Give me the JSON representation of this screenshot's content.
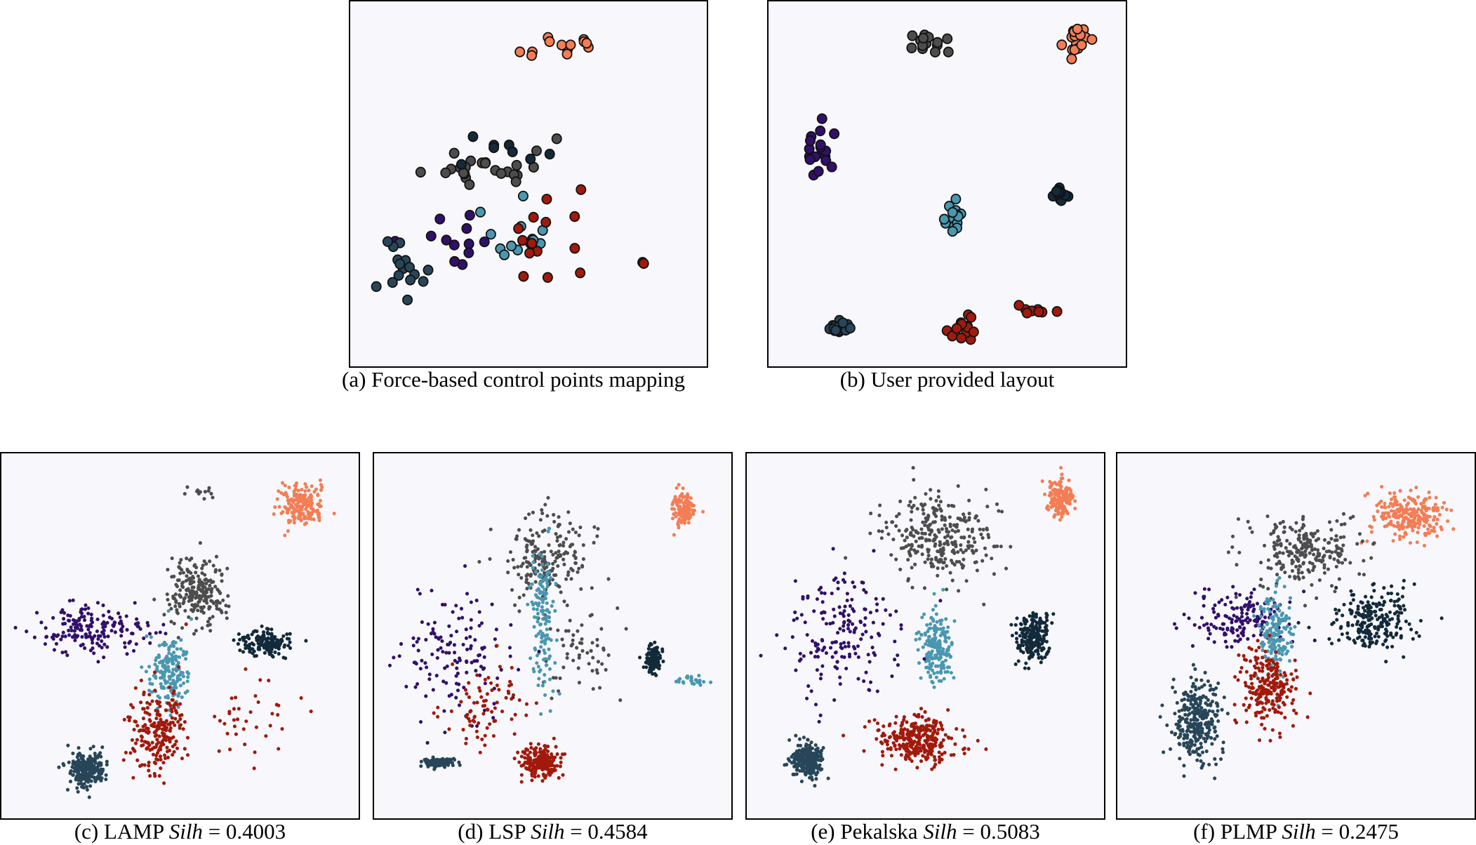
{
  "colors": {
    "bg": "#f8f8fc",
    "orange": "#f37d55",
    "gray": "#4d4d4d",
    "navy": "#132a3a",
    "teal": "#4a97b0",
    "purple": "#32106a",
    "red": "#a11a0c",
    "slate": "#284659"
  },
  "captions": {
    "a": "(a)  Force-based control points mapping",
    "b": "(b)  User provided layout",
    "c": {
      "prefix": "(c)  LAMP ",
      "metric": "Silh",
      "rest": " = 0.4003"
    },
    "d": {
      "prefix": "(d)  LSP ",
      "metric": "Silh",
      "rest": " = 0.4584"
    },
    "e": {
      "prefix": "(e)  Pekalska ",
      "metric": "Silh",
      "rest": " = 0.5083"
    },
    "f": {
      "prefix": "(f)  PLMP ",
      "metric": "Silh",
      "rest": " = 0.2475"
    }
  },
  "chart_data": [
    {
      "id": "a",
      "type": "scatter",
      "ylim": [
        0,
        1
      ],
      "xlim": [
        0,
        1
      ],
      "point_style": "large",
      "seed": 11,
      "clusters": [
        {
          "color": "orange",
          "cx": 0.58,
          "cy": 0.9,
          "sx": 0.13,
          "sy": 0.035,
          "n": 14
        },
        {
          "color": "gray",
          "cx": 0.39,
          "cy": 0.56,
          "sx": 0.14,
          "sy": 0.06,
          "n": 24
        },
        {
          "color": "navy",
          "cx": 0.42,
          "cy": 0.59,
          "sx": 0.1,
          "sy": 0.05,
          "n": 8
        },
        {
          "color": "teal",
          "cx": 0.47,
          "cy": 0.35,
          "sx": 0.11,
          "sy": 0.07,
          "n": 14
        },
        {
          "color": "purple",
          "cx": 0.28,
          "cy": 0.33,
          "sx": 0.12,
          "sy": 0.07,
          "n": 12
        },
        {
          "color": "red",
          "cx": 0.58,
          "cy": 0.34,
          "sx": 0.2,
          "sy": 0.12,
          "n": 16
        },
        {
          "color": "slate",
          "cx": 0.14,
          "cy": 0.24,
          "sx": 0.07,
          "sy": 0.1,
          "n": 16
        }
      ]
    },
    {
      "id": "b",
      "type": "scatter",
      "ylim": [
        0,
        1
      ],
      "xlim": [
        0,
        1
      ],
      "point_style": "large",
      "seed": 23,
      "clusters": [
        {
          "color": "gray",
          "cx": 0.46,
          "cy": 0.91,
          "sx": 0.05,
          "sy": 0.025,
          "n": 14
        },
        {
          "color": "orange",
          "cx": 0.89,
          "cy": 0.91,
          "sx": 0.03,
          "sy": 0.03,
          "n": 16
        },
        {
          "color": "purple",
          "cx": 0.12,
          "cy": 0.6,
          "sx": 0.04,
          "sy": 0.06,
          "n": 18
        },
        {
          "color": "teal",
          "cx": 0.51,
          "cy": 0.4,
          "sx": 0.025,
          "sy": 0.05,
          "n": 14
        },
        {
          "color": "navy",
          "cx": 0.83,
          "cy": 0.47,
          "sx": 0.02,
          "sy": 0.02,
          "n": 18
        },
        {
          "color": "slate",
          "cx": 0.18,
          "cy": 0.08,
          "sx": 0.03,
          "sy": 0.012,
          "n": 18
        },
        {
          "color": "red",
          "cx": 0.55,
          "cy": 0.08,
          "sx": 0.04,
          "sy": 0.025,
          "n": 16
        },
        {
          "color": "red",
          "cx": 0.74,
          "cy": 0.13,
          "sx": 0.06,
          "sy": 0.02,
          "n": 8
        }
      ]
    },
    {
      "id": "c",
      "type": "scatter",
      "ylim": [
        0,
        1
      ],
      "xlim": [
        0,
        1
      ],
      "point_style": "small",
      "seed": 31,
      "clusters": [
        {
          "color": "orange",
          "cx": 0.86,
          "cy": 0.88,
          "sx": 0.06,
          "sy": 0.05,
          "n": 180
        },
        {
          "color": "gray",
          "cx": 0.55,
          "cy": 0.63,
          "sx": 0.07,
          "sy": 0.08,
          "n": 220
        },
        {
          "color": "gray",
          "cx": 0.55,
          "cy": 0.92,
          "sx": 0.05,
          "sy": 0.015,
          "n": 12
        },
        {
          "color": "navy",
          "cx": 0.76,
          "cy": 0.48,
          "sx": 0.06,
          "sy": 0.03,
          "n": 160
        },
        {
          "color": "purple",
          "cx": 0.25,
          "cy": 0.52,
          "sx": 0.15,
          "sy": 0.06,
          "n": 180
        },
        {
          "color": "teal",
          "cx": 0.47,
          "cy": 0.4,
          "sx": 0.05,
          "sy": 0.08,
          "n": 170
        },
        {
          "color": "red",
          "cx": 0.43,
          "cy": 0.22,
          "sx": 0.07,
          "sy": 0.1,
          "n": 220
        },
        {
          "color": "red",
          "cx": 0.68,
          "cy": 0.25,
          "sx": 0.12,
          "sy": 0.12,
          "n": 40
        },
        {
          "color": "slate",
          "cx": 0.22,
          "cy": 0.11,
          "sx": 0.04,
          "sy": 0.04,
          "n": 260
        }
      ]
    },
    {
      "id": "d",
      "type": "scatter",
      "ylim": [
        0,
        1
      ],
      "xlim": [
        0,
        1
      ],
      "point_style": "small",
      "seed": 47,
      "clusters": [
        {
          "color": "orange",
          "cx": 0.89,
          "cy": 0.87,
          "sx": 0.03,
          "sy": 0.04,
          "n": 120
        },
        {
          "color": "gray",
          "cx": 0.48,
          "cy": 0.72,
          "sx": 0.1,
          "sy": 0.1,
          "n": 200
        },
        {
          "color": "gray",
          "cx": 0.58,
          "cy": 0.45,
          "sx": 0.1,
          "sy": 0.1,
          "n": 60
        },
        {
          "color": "navy",
          "cx": 0.8,
          "cy": 0.43,
          "sx": 0.02,
          "sy": 0.03,
          "n": 120
        },
        {
          "color": "teal",
          "cx": 0.47,
          "cy": 0.55,
          "sx": 0.03,
          "sy": 0.22,
          "n": 140
        },
        {
          "color": "teal",
          "cx": 0.91,
          "cy": 0.37,
          "sx": 0.05,
          "sy": 0.012,
          "n": 25
        },
        {
          "color": "purple",
          "cx": 0.22,
          "cy": 0.45,
          "sx": 0.12,
          "sy": 0.15,
          "n": 140
        },
        {
          "color": "red",
          "cx": 0.46,
          "cy": 0.13,
          "sx": 0.05,
          "sy": 0.04,
          "n": 200
        },
        {
          "color": "red",
          "cx": 0.3,
          "cy": 0.3,
          "sx": 0.1,
          "sy": 0.1,
          "n": 80
        },
        {
          "color": "slate",
          "cx": 0.16,
          "cy": 0.13,
          "sx": 0.04,
          "sy": 0.012,
          "n": 120
        }
      ]
    },
    {
      "id": "e",
      "type": "scatter",
      "ylim": [
        0,
        1
      ],
      "xlim": [
        0,
        1
      ],
      "point_style": "small",
      "seed": 59,
      "clusters": [
        {
          "color": "orange",
          "cx": 0.9,
          "cy": 0.9,
          "sx": 0.03,
          "sy": 0.04,
          "n": 170
        },
        {
          "color": "gray",
          "cx": 0.54,
          "cy": 0.79,
          "sx": 0.14,
          "sy": 0.1,
          "n": 300
        },
        {
          "color": "navy",
          "cx": 0.82,
          "cy": 0.5,
          "sx": 0.04,
          "sy": 0.06,
          "n": 220
        },
        {
          "color": "teal",
          "cx": 0.53,
          "cy": 0.47,
          "sx": 0.04,
          "sy": 0.1,
          "n": 180
        },
        {
          "color": "purple",
          "cx": 0.25,
          "cy": 0.5,
          "sx": 0.14,
          "sy": 0.15,
          "n": 180
        },
        {
          "color": "red",
          "cx": 0.48,
          "cy": 0.2,
          "sx": 0.1,
          "sy": 0.06,
          "n": 300
        },
        {
          "color": "slate",
          "cx": 0.15,
          "cy": 0.14,
          "sx": 0.04,
          "sy": 0.04,
          "n": 260
        }
      ]
    },
    {
      "id": "f",
      "type": "scatter",
      "ylim": [
        0,
        1
      ],
      "xlim": [
        0,
        1
      ],
      "point_style": "small",
      "seed": 71,
      "clusters": [
        {
          "color": "orange",
          "cx": 0.84,
          "cy": 0.85,
          "sx": 0.1,
          "sy": 0.06,
          "n": 240
        },
        {
          "color": "gray",
          "cx": 0.52,
          "cy": 0.74,
          "sx": 0.13,
          "sy": 0.08,
          "n": 240
        },
        {
          "color": "navy",
          "cx": 0.73,
          "cy": 0.55,
          "sx": 0.1,
          "sy": 0.08,
          "n": 230
        },
        {
          "color": "purple",
          "cx": 0.33,
          "cy": 0.55,
          "sx": 0.12,
          "sy": 0.07,
          "n": 160
        },
        {
          "color": "teal",
          "cx": 0.44,
          "cy": 0.5,
          "sx": 0.04,
          "sy": 0.1,
          "n": 160
        },
        {
          "color": "red",
          "cx": 0.42,
          "cy": 0.35,
          "sx": 0.07,
          "sy": 0.1,
          "n": 230
        },
        {
          "color": "slate",
          "cx": 0.2,
          "cy": 0.25,
          "sx": 0.06,
          "sy": 0.1,
          "n": 300
        }
      ]
    }
  ]
}
